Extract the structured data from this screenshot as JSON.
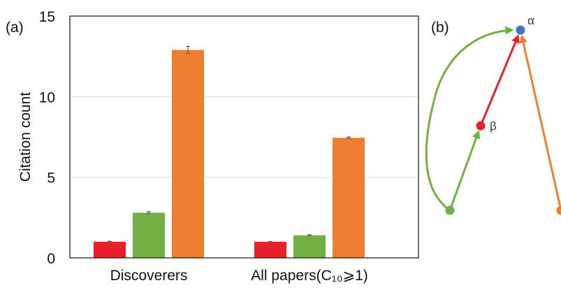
{
  "panels": {
    "a_label": "(a)",
    "b_label": "(b)"
  },
  "chart_data": {
    "type": "bar",
    "categories": [
      "Discoverers",
      "All papers(C₁₀⩾1)"
    ],
    "series": [
      {
        "values": [
          1.0,
          1.0
        ],
        "errors": [
          0.03,
          0.02
        ],
        "color": "#e8202a"
      },
      {
        "values": [
          2.8,
          1.4
        ],
        "errors": [
          0.07,
          0.03
        ],
        "color": "#72b043"
      },
      {
        "values": [
          12.9,
          7.45
        ],
        "errors": [
          0.22,
          0.05
        ],
        "color": "#ed7d31"
      }
    ],
    "ylabel": "Citation count",
    "yticks": [
      0,
      5,
      10,
      15
    ],
    "ylim": [
      0,
      15
    ],
    "grid": true
  },
  "diagram": {
    "nodes": [
      {
        "id": "alpha",
        "label": "α",
        "color": "#4472c4"
      },
      {
        "id": "beta",
        "label": "β",
        "color": "#e8202a"
      },
      {
        "id": "green-source",
        "label": "",
        "color": "#72b043"
      },
      {
        "id": "orange-source",
        "label": "",
        "color": "#ed7d31"
      }
    ],
    "edges": [
      {
        "from": "beta",
        "to": "alpha",
        "color": "#e8202a"
      },
      {
        "from": "green-source",
        "to": "beta",
        "color": "#72b043"
      },
      {
        "from": "green-source",
        "to": "alpha",
        "color": "#72b043"
      },
      {
        "from": "orange-source",
        "to": "alpha",
        "color": "#ed7d31"
      }
    ]
  }
}
